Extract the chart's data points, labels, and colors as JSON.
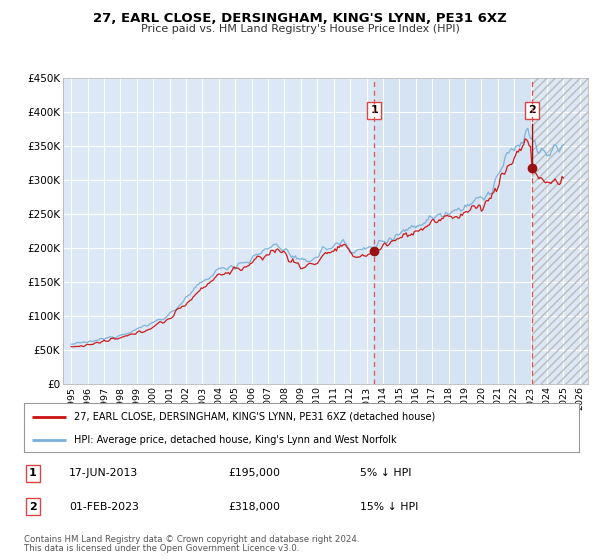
{
  "title": "27, EARL CLOSE, DERSINGHAM, KING'S LYNN, PE31 6XZ",
  "subtitle": "Price paid vs. HM Land Registry's House Price Index (HPI)",
  "legend_line1": "27, EARL CLOSE, DERSINGHAM, KING'S LYNN, PE31 6XZ (detached house)",
  "legend_line2": "HPI: Average price, detached house, King's Lynn and West Norfolk",
  "transaction1_label": "1",
  "transaction1_date": "17-JUN-2013",
  "transaction1_price": "£195,000",
  "transaction1_hpi": "5% ↓ HPI",
  "transaction2_label": "2",
  "transaction2_date": "01-FEB-2023",
  "transaction2_price": "£318,000",
  "transaction2_hpi": "15% ↓ HPI",
  "footer1": "Contains HM Land Registry data © Crown copyright and database right 2024.",
  "footer2": "This data is licensed under the Open Government Licence v3.0.",
  "plot_bg_color": "#dce8f5",
  "grid_color": "#ffffff",
  "hpi_color": "#7ab0d8",
  "price_color": "#cc1111",
  "marker_color": "#991111",
  "vline_color": "#dd4444",
  "shade_color": "#c8dcf0",
  "hatch_color": "#cccccc",
  "sale1_x": 2013.46,
  "sale1_y": 195000,
  "sale2_x": 2023.08,
  "sale2_y": 318000,
  "vline1_x": 2013.46,
  "vline2_x": 2023.08,
  "ylim_min": 0,
  "ylim_max": 450000,
  "xlim_min": 1994.5,
  "xlim_max": 2026.5,
  "yticks": [
    0,
    50000,
    100000,
    150000,
    200000,
    250000,
    300000,
    350000,
    400000,
    450000
  ],
  "ytick_labels": [
    "£0",
    "£50K",
    "£100K",
    "£150K",
    "£200K",
    "£250K",
    "£300K",
    "£350K",
    "£400K",
    "£450K"
  ],
  "xticks": [
    1995,
    1996,
    1997,
    1998,
    1999,
    2000,
    2001,
    2002,
    2003,
    2004,
    2005,
    2006,
    2007,
    2008,
    2009,
    2010,
    2011,
    2012,
    2013,
    2014,
    2015,
    2016,
    2017,
    2018,
    2019,
    2020,
    2021,
    2022,
    2023,
    2024,
    2025,
    2026
  ]
}
